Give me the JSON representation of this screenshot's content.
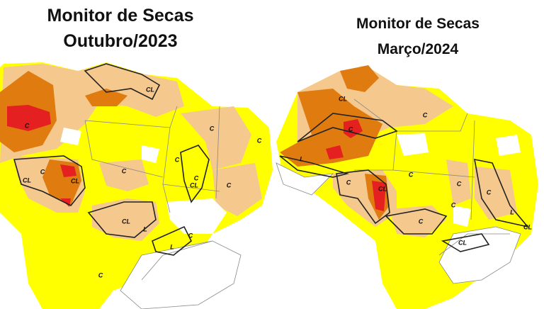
{
  "maps": [
    {
      "title": [
        "Monitor de Secas",
        "Outubro/2023"
      ],
      "labels": [
        "CL",
        "C",
        "C",
        "CL",
        "CL",
        "C",
        "C",
        "C",
        "C",
        "C",
        "CL",
        "C",
        "CL",
        "L",
        "L",
        "C",
        "C"
      ]
    },
    {
      "title": [
        "Monitor de Secas",
        "Março/2024"
      ],
      "labels": [
        "CL",
        "C",
        "C",
        "L",
        "C",
        "CL",
        "C",
        "C",
        "C",
        "C",
        "CL",
        "CL",
        "L",
        "C"
      ]
    }
  ]
}
